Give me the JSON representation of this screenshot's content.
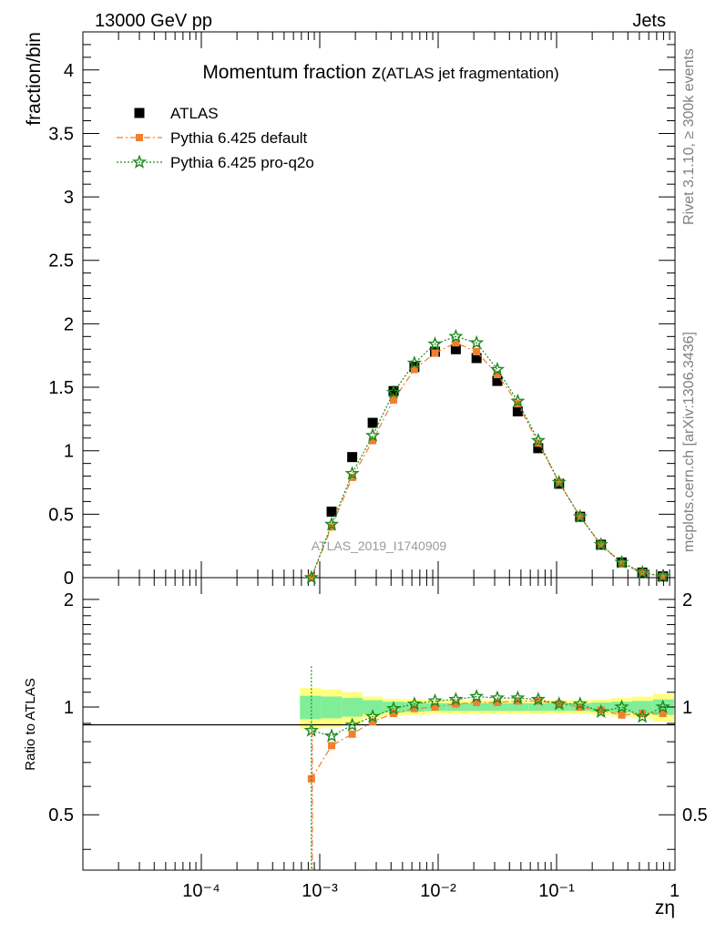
{
  "header": {
    "left": "13000 GeV pp",
    "right": "Jets"
  },
  "side": {
    "rivet": "Rivet 3.1.10, ≥ 300k events",
    "mcplots": "mcplots.cern.ch [arXiv:1306.3436]"
  },
  "watermark": "ATLAS_2019_I1740909",
  "chart_data": {
    "type": "scatter",
    "title": "Momentum fraction z",
    "title_suffix": "(ATLAS jet fragmentation)",
    "xlabel": "zη",
    "ylabel": "fraction/bin",
    "ratio_ylabel": "Ratio to ATLAS",
    "x_scale": "log",
    "xlim": [
      1e-05,
      1
    ],
    "ylim": [
      0,
      4.3
    ],
    "ratio_ylim": [
      0.35,
      2.3
    ],
    "ratio_scale": "log",
    "x_ticklabels": [
      "10⁻⁴",
      "10⁻³",
      "10⁻²",
      "10⁻¹",
      "1"
    ],
    "y_ticklabels": [
      "0",
      "0.5",
      "1",
      "1.5",
      "2",
      "2.5",
      "3",
      "3.5",
      "4"
    ],
    "ratio_ticklabels": [
      "0.5",
      "1",
      "2"
    ],
    "legend_position": "top-left",
    "x": [
      0.00085,
      0.00126,
      0.00188,
      0.0028,
      0.0042,
      0.0063,
      0.0094,
      0.0141,
      0.0211,
      0.0316,
      0.047,
      0.07,
      0.105,
      0.158,
      0.237,
      0.355,
      0.53,
      0.79
    ],
    "band_edges": [
      0.00068,
      0.00103,
      0.00154,
      0.0023,
      0.0034,
      0.0052,
      0.0077,
      0.0116,
      0.0172,
      0.0258,
      0.0385,
      0.058,
      0.086,
      0.129,
      0.194,
      0.29,
      0.435,
      0.65,
      0.98
    ],
    "band_inner": [
      0.075,
      0.07,
      0.06,
      0.045,
      0.035,
      0.03,
      0.025,
      0.025,
      0.025,
      0.025,
      0.025,
      0.025,
      0.025,
      0.025,
      0.03,
      0.035,
      0.04,
      0.05
    ],
    "band_outer": [
      0.13,
      0.12,
      0.1,
      0.07,
      0.055,
      0.05,
      0.045,
      0.045,
      0.045,
      0.045,
      0.045,
      0.045,
      0.045,
      0.045,
      0.05,
      0.06,
      0.07,
      0.09
    ],
    "series": [
      {
        "name": "ATLAS",
        "color": "#000000",
        "marker": "square",
        "values": [
          null,
          0.52,
          0.95,
          1.22,
          1.47,
          1.66,
          1.78,
          1.8,
          1.73,
          1.55,
          1.31,
          1.02,
          0.74,
          0.48,
          0.26,
          0.12,
          0.04,
          0.01
        ],
        "ratio": [
          null,
          null,
          null,
          null,
          null,
          null,
          null,
          null,
          null,
          null,
          null,
          null,
          null,
          null,
          null,
          null,
          null,
          null
        ]
      },
      {
        "name": "Pythia 6.425 default",
        "color": "#f07f2e",
        "marker": "square-small",
        "line": "dashdot",
        "values": [
          0.0,
          0.4,
          0.79,
          1.08,
          1.4,
          1.64,
          1.77,
          1.85,
          1.78,
          1.6,
          1.37,
          1.06,
          0.75,
          0.48,
          0.26,
          0.11,
          0.04,
          0.008
        ],
        "ratio": [
          0.63,
          0.78,
          0.84,
          0.91,
          0.96,
          0.99,
          1.0,
          1.02,
          1.03,
          1.03,
          1.04,
          1.04,
          1.02,
          1.0,
          0.98,
          0.95,
          0.96,
          0.96
        ]
      },
      {
        "name": "Pythia 6.425 pro-q2o",
        "color": "#1e8a1e",
        "marker": "star",
        "line": "dotted",
        "values": [
          0.0,
          0.42,
          0.82,
          1.12,
          1.46,
          1.69,
          1.84,
          1.9,
          1.85,
          1.64,
          1.39,
          1.08,
          0.75,
          0.48,
          0.26,
          0.12,
          0.04,
          0.01
        ],
        "ratio": [
          0.86,
          0.83,
          0.89,
          0.94,
          0.99,
          1.02,
          1.04,
          1.05,
          1.07,
          1.06,
          1.06,
          1.05,
          1.02,
          1.02,
          0.97,
          1.0,
          0.94,
          1.0
        ]
      }
    ]
  }
}
